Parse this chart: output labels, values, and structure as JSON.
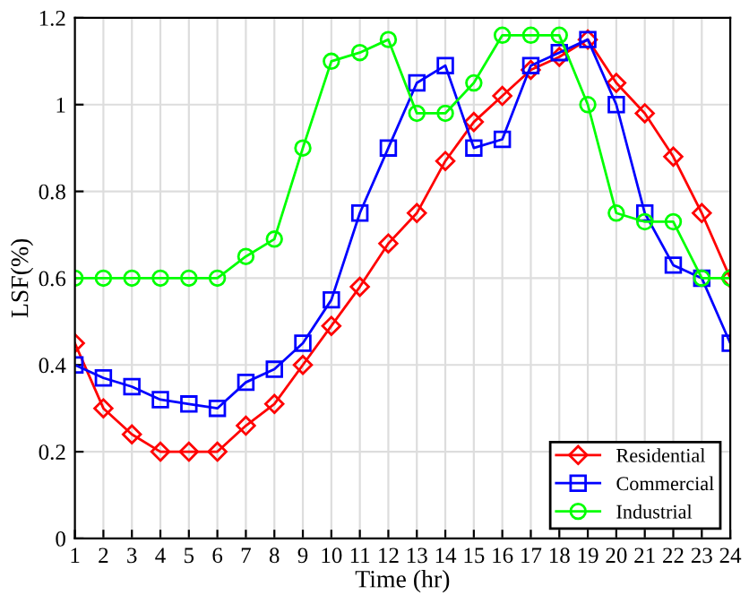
{
  "chart_data": {
    "type": "line",
    "xlabel": "Time (hr)",
    "ylabel": "LSF(%)",
    "x": [
      1,
      2,
      3,
      4,
      5,
      6,
      7,
      8,
      9,
      10,
      11,
      12,
      13,
      14,
      15,
      16,
      17,
      18,
      19,
      20,
      21,
      22,
      23,
      24
    ],
    "series": [
      {
        "name": "Residential",
        "color": "#ff0000",
        "marker": "diamond",
        "values": [
          0.45,
          0.3,
          0.24,
          0.2,
          0.2,
          0.2,
          0.26,
          0.31,
          0.4,
          0.49,
          0.58,
          0.68,
          0.75,
          0.87,
          0.96,
          1.02,
          1.08,
          1.11,
          1.15,
          1.05,
          0.98,
          0.88,
          0.75,
          0.6
        ]
      },
      {
        "name": "Commercial",
        "color": "#0000ff",
        "marker": "square",
        "values": [
          0.4,
          0.37,
          0.35,
          0.32,
          0.31,
          0.3,
          0.36,
          0.39,
          0.45,
          0.55,
          0.75,
          0.9,
          1.05,
          1.09,
          0.9,
          0.92,
          1.09,
          1.12,
          1.15,
          1.0,
          0.75,
          0.63,
          0.6,
          0.45
        ]
      },
      {
        "name": "Industrial",
        "color": "#00ff00",
        "marker": "circle",
        "values": [
          0.6,
          0.6,
          0.6,
          0.6,
          0.6,
          0.6,
          0.65,
          0.69,
          0.9,
          1.1,
          1.12,
          1.15,
          0.98,
          0.98,
          1.05,
          1.16,
          1.16,
          1.16,
          1.0,
          0.75,
          0.73,
          0.73,
          0.6,
          0.6
        ]
      }
    ],
    "xlim": [
      1,
      24
    ],
    "xticks": [
      1,
      2,
      3,
      4,
      5,
      6,
      7,
      8,
      9,
      10,
      11,
      12,
      13,
      14,
      15,
      16,
      17,
      18,
      19,
      20,
      21,
      22,
      23,
      24
    ],
    "ylim": [
      0,
      1.2
    ],
    "yticks": [
      0,
      0.2,
      0.4,
      0.6,
      0.8,
      1,
      1.2
    ],
    "grid": true,
    "legend": "bottom right",
    "line_style": "solid"
  }
}
